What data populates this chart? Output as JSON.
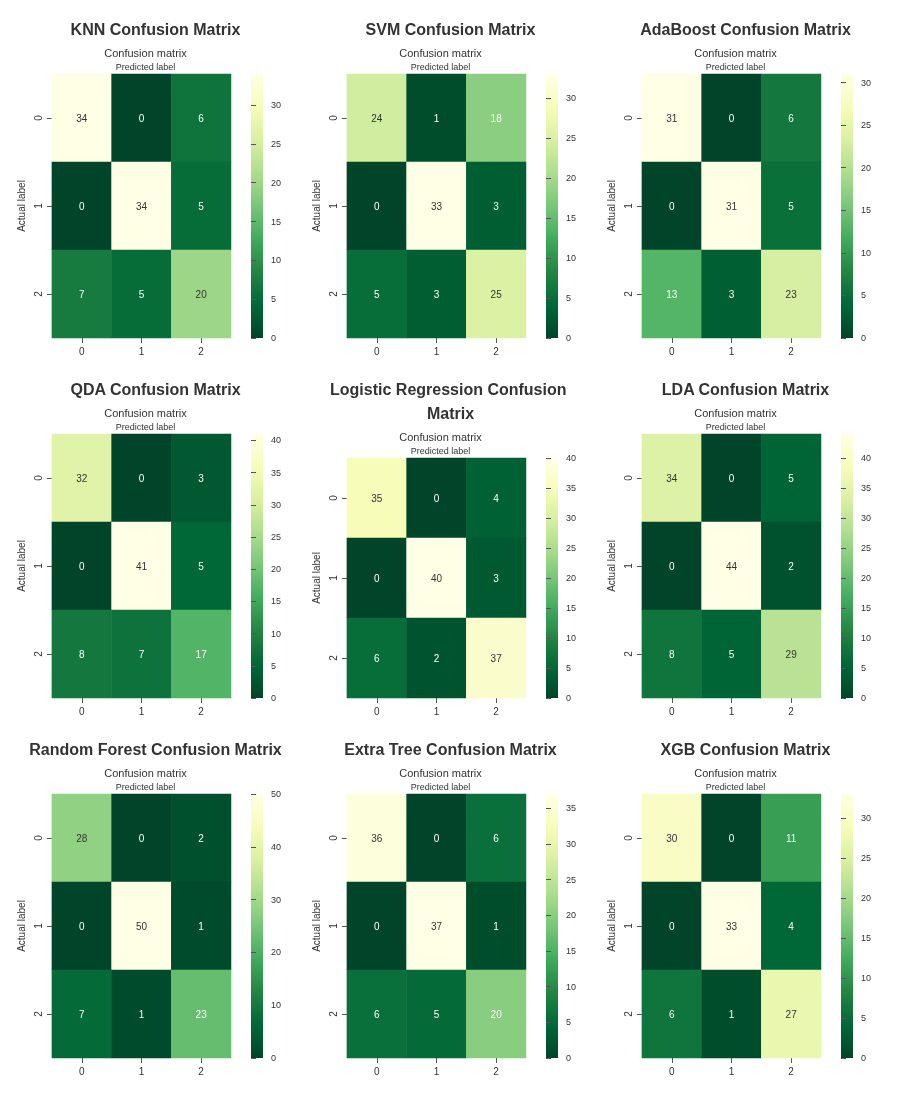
{
  "chart_data": [
    {
      "type": "heatmap",
      "title": "KNN Confusion Matrix",
      "subtitle": "Confusion matrix",
      "xlabel": "Predicted label",
      "ylabel": "Actual label",
      "categories": [
        "0",
        "1",
        "2"
      ],
      "y_categories": [
        "0",
        "1",
        "2"
      ],
      "cells": [
        [
          34,
          0,
          6
        ],
        [
          0,
          34,
          5
        ],
        [
          7,
          5,
          20
        ]
      ],
      "clim": [
        0,
        34
      ],
      "cticks": [
        0,
        5,
        10,
        15,
        20,
        25,
        30
      ],
      "data_labels": true
    },
    {
      "type": "heatmap",
      "title": "SVM Confusion Matrix",
      "subtitle": "Confusion matrix",
      "xlabel": "Predicted label",
      "ylabel": "Actual label",
      "categories": [
        "0",
        "1",
        "2"
      ],
      "y_categories": [
        "0",
        "1",
        "2"
      ],
      "cells": [
        [
          24,
          1,
          18
        ],
        [
          0,
          33,
          3
        ],
        [
          5,
          3,
          25
        ]
      ],
      "clim": [
        0,
        33
      ],
      "cticks": [
        0,
        5,
        10,
        15,
        20,
        25,
        30
      ],
      "data_labels": true
    },
    {
      "type": "heatmap",
      "title": "AdaBoost Confusion Matrix",
      "subtitle": "Confusion matrix",
      "xlabel": "Predicted label",
      "ylabel": "Actual label",
      "categories": [
        "0",
        "1",
        "2"
      ],
      "y_categories": [
        "0",
        "1",
        "2"
      ],
      "cells": [
        [
          31,
          0,
          6
        ],
        [
          0,
          31,
          5
        ],
        [
          13,
          3,
          23
        ]
      ],
      "clim": [
        0,
        31
      ],
      "cticks": [
        0,
        5,
        10,
        15,
        20,
        25,
        30
      ],
      "data_labels": true
    },
    {
      "type": "heatmap",
      "title": "QDA Confusion Matrix",
      "subtitle": "Confusion matrix",
      "xlabel": "Predicted label",
      "ylabel": "Actual label",
      "categories": [
        "0",
        "1",
        "2"
      ],
      "y_categories": [
        "0",
        "1",
        "2"
      ],
      "cells": [
        [
          32,
          0,
          3
        ],
        [
          0,
          41,
          5
        ],
        [
          8,
          7,
          17
        ]
      ],
      "clim": [
        0,
        41
      ],
      "cticks": [
        0,
        5,
        10,
        15,
        20,
        25,
        30,
        35,
        40
      ],
      "data_labels": true
    },
    {
      "type": "heatmap",
      "title": "Logistic Regression Confusion Matrix",
      "subtitle": "Confusion matrix",
      "xlabel": "Predicted label",
      "ylabel": "Actual label",
      "categories": [
        "0",
        "1",
        "2"
      ],
      "y_categories": [
        "0",
        "1",
        "2"
      ],
      "cells": [
        [
          35,
          0,
          4
        ],
        [
          0,
          40,
          3
        ],
        [
          6,
          2,
          37
        ]
      ],
      "clim": [
        0,
        40
      ],
      "cticks": [
        0,
        5,
        10,
        15,
        20,
        25,
        30,
        35,
        40
      ],
      "data_labels": true
    },
    {
      "type": "heatmap",
      "title": "LDA Confusion Matrix",
      "subtitle": "Confusion matrix",
      "xlabel": "Predicted label",
      "ylabel": "Actual label",
      "categories": [
        "0",
        "1",
        "2"
      ],
      "y_categories": [
        "0",
        "1",
        "2"
      ],
      "cells": [
        [
          34,
          0,
          5
        ],
        [
          0,
          44,
          2
        ],
        [
          8,
          5,
          29
        ]
      ],
      "clim": [
        0,
        44
      ],
      "cticks": [
        0,
        5,
        10,
        15,
        20,
        25,
        30,
        35,
        40
      ],
      "data_labels": true
    },
    {
      "type": "heatmap",
      "title": "Random Forest Confusion Matrix",
      "subtitle": "Confusion matrix",
      "xlabel": "Predicted label",
      "ylabel": "Actual label",
      "categories": [
        "0",
        "1",
        "2"
      ],
      "y_categories": [
        "0",
        "1",
        "2"
      ],
      "cells": [
        [
          28,
          0,
          2
        ],
        [
          0,
          50,
          1
        ],
        [
          7,
          1,
          23
        ]
      ],
      "clim": [
        0,
        50
      ],
      "cticks": [
        0,
        10,
        20,
        30,
        40,
        50
      ],
      "data_labels": true
    },
    {
      "type": "heatmap",
      "title": "Extra Tree Confusion Matrix",
      "subtitle": "Confusion matrix",
      "xlabel": "Predicted label",
      "ylabel": "Actual label",
      "categories": [
        "0",
        "1",
        "2"
      ],
      "y_categories": [
        "0",
        "1",
        "2"
      ],
      "cells": [
        [
          36,
          0,
          6
        ],
        [
          0,
          37,
          1
        ],
        [
          6,
          5,
          20
        ]
      ],
      "clim": [
        0,
        37
      ],
      "cticks": [
        0,
        5,
        10,
        15,
        20,
        25,
        30,
        35
      ],
      "data_labels": true
    },
    {
      "type": "heatmap",
      "title": "XGB Confusion Matrix",
      "subtitle": "Confusion matrix",
      "xlabel": "Predicted label",
      "ylabel": "Actual label",
      "categories": [
        "0",
        "1",
        "2"
      ],
      "y_categories": [
        "0",
        "1",
        "2"
      ],
      "cells": [
        [
          30,
          0,
          11
        ],
        [
          0,
          33,
          4
        ],
        [
          6,
          1,
          27
        ]
      ],
      "clim": [
        0,
        33
      ],
      "cticks": [
        0,
        5,
        10,
        15,
        20,
        25,
        30
      ],
      "data_labels": true
    }
  ]
}
